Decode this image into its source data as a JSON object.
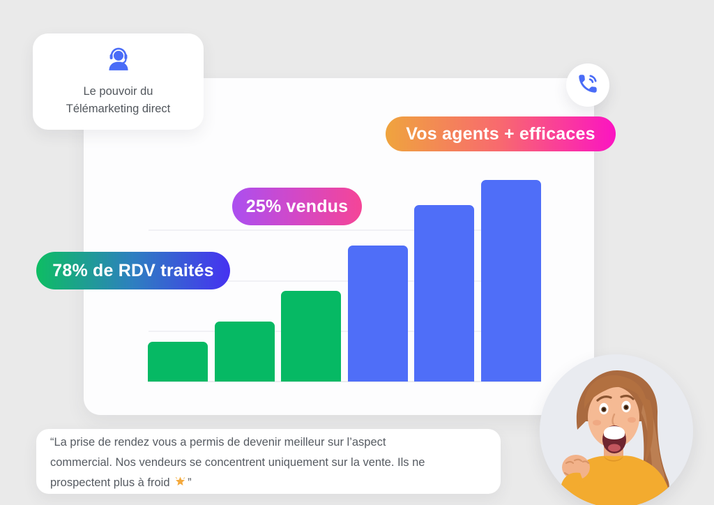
{
  "page": {
    "background_color": "#eaeaea",
    "accent_blue": "#4a6cf7"
  },
  "top_card": {
    "icon": "headset-agent-icon",
    "icon_color": "#4a6cf7",
    "title_line1": "Le pouvoir du",
    "title_line2": "Télémarketing direct"
  },
  "phone_button": {
    "icon": "phone-ringing-icon",
    "icon_color": "#4a6cf7"
  },
  "badges": [
    {
      "label": "Vos agents + efficaces",
      "gradient": [
        "#efa43e",
        "#f8696f",
        "#fb14c2"
      ]
    },
    {
      "label": "25% vendus",
      "gradient": [
        "#ab4ff0",
        "#d348c6",
        "#f54597"
      ]
    },
    {
      "label": "78% de RDV traités",
      "gradient": [
        "#0ebd63",
        "#2e7fc0",
        "#4632f1"
      ]
    }
  ],
  "chart_data": {
    "type": "bar",
    "title": "",
    "xlabel": "",
    "ylabel": "",
    "values": [
      0.79,
      1.19,
      1.8,
      2.7,
      3.5,
      4.0
    ],
    "bar_colors": [
      "#06b964",
      "#06b964",
      "#06b964",
      "#4f6ef8",
      "#4f6ef8",
      "#4f6ef8"
    ],
    "series_meaning": [
      {
        "name": "78% de RDV traités",
        "color": "#06b964",
        "bars": [
          1,
          2,
          3
        ]
      },
      {
        "name": "25% vendus / Vos agents + efficaces",
        "color": "#4f6ef8",
        "bars": [
          4,
          5,
          6
        ]
      }
    ],
    "ylim": [
      0,
      4.35
    ],
    "gridlines": [
      1,
      2,
      3
    ],
    "grid": true,
    "legend_position": "none",
    "tick_labels_visible": false
  },
  "testimonial": {
    "line1": "“La prise de rendez vous a permis de devenir meilleur sur l’aspect",
    "line2": "commercial. Nos vendeurs se concentrent uniquement sur la vente. Ils ne",
    "line3_before_emoji": "prospectent plus à froid",
    "emoji": "🌟",
    "closing_quote": "”"
  },
  "photo": {
    "type": "circular-photo",
    "subject": "excited woman in yellow shirt raising fist"
  }
}
